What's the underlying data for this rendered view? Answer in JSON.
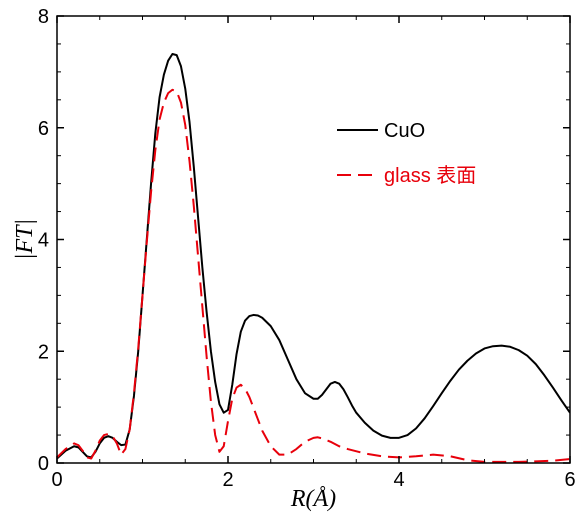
{
  "chart_data": {
    "type": "line",
    "xlabel": "R(Å)",
    "ylabel": "|FT|",
    "xlim": [
      0,
      6
    ],
    "ylim": [
      0,
      8
    ],
    "xticks": [
      "0",
      "2",
      "4",
      "6"
    ],
    "yticks": [
      "0",
      "2",
      "4",
      "6",
      "8"
    ],
    "grid": false,
    "legend_position": "top-right",
    "series": [
      {
        "name": "CuO",
        "color": "#000000",
        "line_style": "solid",
        "x": [
          0.0,
          0.1,
          0.2,
          0.25,
          0.3,
          0.35,
          0.4,
          0.45,
          0.5,
          0.55,
          0.6,
          0.65,
          0.7,
          0.75,
          0.8,
          0.85,
          0.9,
          0.95,
          1.0,
          1.05,
          1.1,
          1.15,
          1.2,
          1.25,
          1.3,
          1.35,
          1.4,
          1.45,
          1.5,
          1.55,
          1.6,
          1.65,
          1.7,
          1.75,
          1.8,
          1.85,
          1.9,
          1.95,
          2.0,
          2.05,
          2.1,
          2.15,
          2.2,
          2.25,
          2.3,
          2.35,
          2.4,
          2.5,
          2.6,
          2.7,
          2.8,
          2.9,
          3.0,
          3.05,
          3.1,
          3.15,
          3.2,
          3.25,
          3.3,
          3.35,
          3.4,
          3.45,
          3.5,
          3.6,
          3.7,
          3.8,
          3.9,
          4.0,
          4.1,
          4.2,
          4.3,
          4.4,
          4.5,
          4.6,
          4.7,
          4.8,
          4.9,
          5.0,
          5.1,
          5.2,
          5.3,
          5.4,
          5.5,
          5.6,
          5.7,
          5.8,
          5.9,
          6.0
        ],
        "y": [
          0.08,
          0.22,
          0.3,
          0.28,
          0.2,
          0.12,
          0.1,
          0.2,
          0.35,
          0.45,
          0.48,
          0.45,
          0.38,
          0.32,
          0.33,
          0.6,
          1.2,
          2.0,
          3.0,
          4.0,
          5.0,
          5.9,
          6.55,
          6.95,
          7.2,
          7.32,
          7.3,
          7.1,
          6.7,
          6.1,
          5.3,
          4.4,
          3.5,
          2.7,
          2.0,
          1.45,
          1.05,
          0.9,
          0.95,
          1.4,
          1.95,
          2.35,
          2.55,
          2.63,
          2.65,
          2.64,
          2.6,
          2.45,
          2.2,
          1.85,
          1.5,
          1.25,
          1.15,
          1.15,
          1.22,
          1.32,
          1.42,
          1.45,
          1.42,
          1.32,
          1.18,
          1.03,
          0.9,
          0.72,
          0.58,
          0.49,
          0.45,
          0.45,
          0.5,
          0.62,
          0.8,
          1.02,
          1.25,
          1.47,
          1.67,
          1.83,
          1.96,
          2.05,
          2.09,
          2.1,
          2.08,
          2.02,
          1.92,
          1.77,
          1.57,
          1.35,
          1.12,
          0.9
        ]
      },
      {
        "name": "glass 表面",
        "color": "#e8000b",
        "line_style": "dashed",
        "x": [
          0.0,
          0.1,
          0.2,
          0.25,
          0.3,
          0.35,
          0.4,
          0.45,
          0.5,
          0.55,
          0.6,
          0.65,
          0.7,
          0.75,
          0.8,
          0.85,
          0.9,
          0.95,
          1.0,
          1.05,
          1.1,
          1.15,
          1.2,
          1.25,
          1.3,
          1.35,
          1.4,
          1.45,
          1.5,
          1.55,
          1.6,
          1.65,
          1.7,
          1.75,
          1.8,
          1.85,
          1.9,
          1.95,
          2.0,
          2.05,
          2.1,
          2.15,
          2.2,
          2.25,
          2.3,
          2.35,
          2.4,
          2.5,
          2.6,
          2.7,
          2.8,
          2.9,
          3.0,
          3.05,
          3.1,
          3.2,
          3.3,
          3.4,
          3.6,
          3.8,
          4.0,
          4.2,
          4.4,
          4.6,
          4.8,
          5.0,
          5.2,
          5.4,
          5.6,
          5.8,
          6.0
        ],
        "y": [
          0.1,
          0.25,
          0.35,
          0.32,
          0.22,
          0.1,
          0.08,
          0.22,
          0.4,
          0.5,
          0.52,
          0.48,
          0.35,
          0.15,
          0.25,
          0.6,
          1.25,
          2.05,
          3.0,
          3.95,
          4.85,
          5.6,
          6.15,
          6.45,
          6.62,
          6.68,
          6.65,
          6.45,
          6.05,
          5.4,
          4.6,
          3.7,
          2.8,
          1.9,
          1.1,
          0.5,
          0.2,
          0.3,
          0.75,
          1.15,
          1.35,
          1.4,
          1.33,
          1.18,
          0.98,
          0.78,
          0.58,
          0.3,
          0.15,
          0.15,
          0.25,
          0.38,
          0.45,
          0.46,
          0.44,
          0.38,
          0.3,
          0.25,
          0.17,
          0.12,
          0.1,
          0.12,
          0.15,
          0.12,
          0.05,
          0.02,
          0.02,
          0.02,
          0.03,
          0.04,
          0.07
        ]
      }
    ]
  }
}
